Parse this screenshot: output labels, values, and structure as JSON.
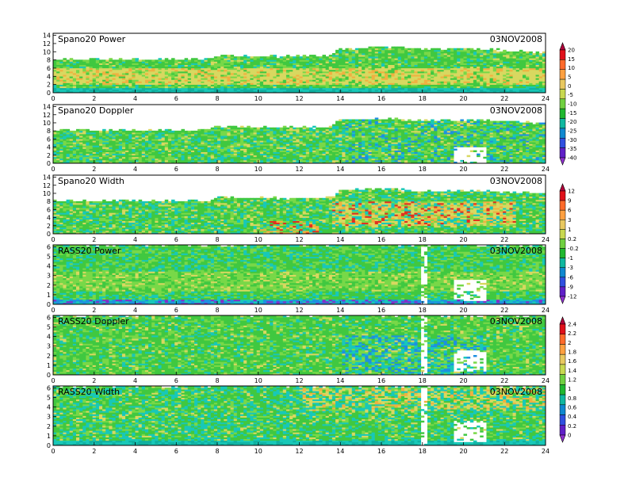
{
  "chart_data": {
    "type": "heatmap",
    "date": "03NOV2008",
    "xlim": [
      0,
      24
    ],
    "x_ticks": [
      "0",
      "2",
      "4",
      "6",
      "8",
      "10",
      "12",
      "14",
      "16",
      "18",
      "20",
      "22",
      "24"
    ],
    "panels": [
      {
        "title": "Spano20 Power",
        "date_label": "03NOV2008",
        "ylim": [
          0,
          14.5
        ],
        "y_ticks": [
          "0",
          "2",
          "4",
          "6",
          "8",
          "10",
          "12",
          "14"
        ],
        "colorbar": 0,
        "top_height": [
          [
            0,
            8.0
          ],
          [
            7.5,
            8.0
          ],
          [
            8.0,
            9.0
          ],
          [
            10.0,
            8.7
          ],
          [
            13.5,
            8.7
          ],
          [
            13.9,
            10.5
          ],
          [
            16.0,
            11.0
          ],
          [
            18.0,
            10.5
          ],
          [
            20.0,
            10.5
          ],
          [
            24.0,
            9.8
          ]
        ],
        "core_band": [
          2.0,
          6.0
        ],
        "white_gaps": []
      },
      {
        "title": "Spano20 Doppler",
        "date_label": "03NOV2008",
        "ylim": [
          0,
          14.5
        ],
        "y_ticks": [
          "0",
          "2",
          "4",
          "6",
          "8",
          "10",
          "12",
          "14"
        ],
        "colorbar": 0,
        "top_height": [
          [
            0,
            8.0
          ],
          [
            7.5,
            8.0
          ],
          [
            8.0,
            9.0
          ],
          [
            10.0,
            8.7
          ],
          [
            13.5,
            8.7
          ],
          [
            13.9,
            10.5
          ],
          [
            16.0,
            11.0
          ],
          [
            18.0,
            10.5
          ],
          [
            20.0,
            10.5
          ],
          [
            24.0,
            9.8
          ]
        ],
        "core_band": [
          0,
          0
        ],
        "white_gaps": [
          [
            19.5,
            21.0,
            0,
            4
          ]
        ]
      },
      {
        "title": "Spano20 Width",
        "date_label": "03NOV2008",
        "ylim": [
          0,
          14.5
        ],
        "y_ticks": [
          "0",
          "2",
          "4",
          "6",
          "8",
          "10",
          "12",
          "14"
        ],
        "colorbar": 1,
        "top_height": [
          [
            0,
            8.0
          ],
          [
            7.5,
            8.0
          ],
          [
            8.0,
            9.0
          ],
          [
            10.0,
            8.7
          ],
          [
            13.5,
            8.7
          ],
          [
            13.9,
            10.5
          ],
          [
            16.0,
            11.0
          ],
          [
            18.0,
            10.5
          ],
          [
            20.0,
            10.5
          ],
          [
            24.0,
            9.8
          ]
        ],
        "core_band": [
          2.0,
          8.0
        ],
        "white_gaps": []
      },
      {
        "title": "RASS20 Power",
        "date_label": "03NOV2008",
        "ylim": [
          0,
          6.2
        ],
        "y_ticks": [
          "0",
          "1",
          "2",
          "3",
          "4",
          "5",
          "6"
        ],
        "colorbar": 1,
        "top_height": [
          [
            0,
            6.2
          ],
          [
            24,
            6.2
          ]
        ],
        "core_band": [
          1.3,
          3.3
        ],
        "white_gaps": [
          [
            17.8,
            18.1,
            0,
            6
          ],
          [
            19.5,
            21.0,
            0.3,
            2.5
          ]
        ]
      },
      {
        "title": "RASS20 Doppler",
        "date_label": "03NOV2008",
        "ylim": [
          0,
          6.2
        ],
        "y_ticks": [
          "0",
          "1",
          "2",
          "3",
          "4",
          "5",
          "6"
        ],
        "colorbar": 2,
        "top_height": [
          [
            0,
            6.2
          ],
          [
            24,
            6.2
          ]
        ],
        "core_band": [
          0,
          0
        ],
        "white_gaps": [
          [
            17.8,
            18.1,
            0,
            6
          ],
          [
            19.5,
            21.0,
            0.3,
            2.5
          ]
        ]
      },
      {
        "title": "RASS20 Width",
        "date_label": "03NOV2008",
        "ylim": [
          0,
          6.2
        ],
        "y_ticks": [
          "0",
          "1",
          "2",
          "3",
          "4",
          "5",
          "6"
        ],
        "colorbar": 2,
        "top_height": [
          [
            0,
            6.2
          ],
          [
            24,
            6.2
          ]
        ],
        "core_band": [
          3.5,
          6.0
        ],
        "white_gaps": [
          [
            17.8,
            18.1,
            0,
            6
          ],
          [
            19.5,
            21.0,
            0.3,
            2.5
          ]
        ]
      }
    ],
    "colorbars": [
      {
        "labels": [
          "20",
          "15",
          "10",
          "5",
          "0",
          "-5",
          "-10",
          "-15",
          "-20",
          "-25",
          "-30",
          "-35",
          "-40"
        ],
        "colors": [
          "#b0003a",
          "#e0101a",
          "#ff6a2a",
          "#ffa040",
          "#e8c860",
          "#c8d850",
          "#70d040",
          "#20b830",
          "#10b8a0",
          "#1088d0",
          "#3050e0",
          "#6020c8",
          "#9030d0"
        ]
      },
      {
        "labels": [
          "12",
          "9",
          "6",
          "3",
          "1",
          "0.2",
          "-0.2",
          "-1",
          "-3",
          "-6",
          "-9",
          "-12"
        ],
        "colors": [
          "#b0003a",
          "#e0101a",
          "#ff6a2a",
          "#ffa040",
          "#e8c860",
          "#c8d850",
          "#70d040",
          "#20b830",
          "#10b8a0",
          "#1088d0",
          "#3050e0",
          "#6020c8",
          "#9030d0"
        ]
      },
      {
        "labels": [
          "2.4",
          "2.2",
          "2",
          "1.8",
          "1.6",
          "1.4",
          "1.2",
          "1",
          "0.8",
          "0.6",
          "0.4",
          "0.2",
          "0"
        ],
        "colors": [
          "#b0003a",
          "#e0101a",
          "#ff6a2a",
          "#ffa040",
          "#e8c860",
          "#c8d850",
          "#70d040",
          "#20b830",
          "#10b8a0",
          "#1088d0",
          "#3050e0",
          "#6020c8",
          "#9030d0"
        ]
      }
    ]
  }
}
